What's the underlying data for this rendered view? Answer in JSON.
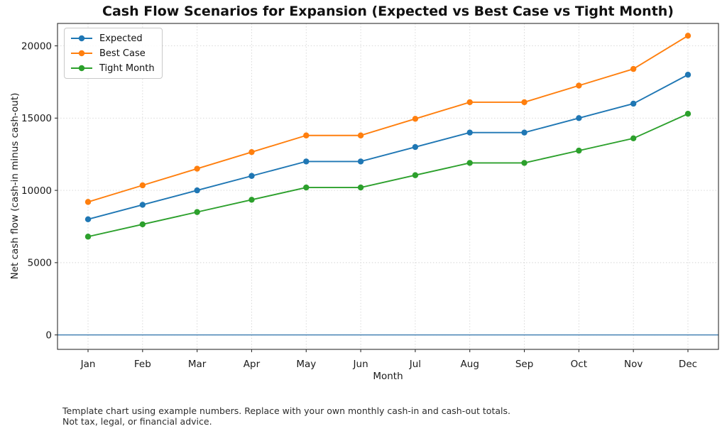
{
  "chart_data": {
    "type": "line",
    "title": "Cash Flow Scenarios for Expansion (Expected vs Best Case vs Tight Month)",
    "xlabel": "Month",
    "ylabel": "Net cash flow (cash-in minus cash-out)",
    "categories": [
      "Jan",
      "Feb",
      "Mar",
      "Apr",
      "May",
      "Jun",
      "Jul",
      "Aug",
      "Sep",
      "Oct",
      "Nov",
      "Dec"
    ],
    "series": [
      {
        "name": "Expected",
        "color": "#1f77b4",
        "values": [
          8000,
          9000,
          10000,
          11000,
          12000,
          12000,
          13000,
          14000,
          14000,
          15000,
          16000,
          18000
        ]
      },
      {
        "name": "Best Case",
        "color": "#ff7f0e",
        "values": [
          9200,
          10350,
          11500,
          12650,
          13800,
          13800,
          14950,
          16100,
          16100,
          17250,
          18400,
          20700
        ]
      },
      {
        "name": "Tight Month",
        "color": "#2ca02c",
        "values": [
          6800,
          7650,
          8500,
          9350,
          10200,
          10200,
          11050,
          11900,
          11900,
          12750,
          13600,
          15300
        ]
      }
    ],
    "yticks": [
      0,
      5000,
      10000,
      15000,
      20000
    ],
    "ylim": [
      -1000,
      21550
    ],
    "grid": true,
    "grid_style": "dotted",
    "legend_position": "upper left",
    "zero_line": {
      "value": 0,
      "color": "#4682b4"
    }
  },
  "footnote": {
    "line1": "Template chart using example numbers. Replace with your own monthly cash-in and cash-out totals.",
    "line2": "Not tax, legal, or financial advice."
  }
}
